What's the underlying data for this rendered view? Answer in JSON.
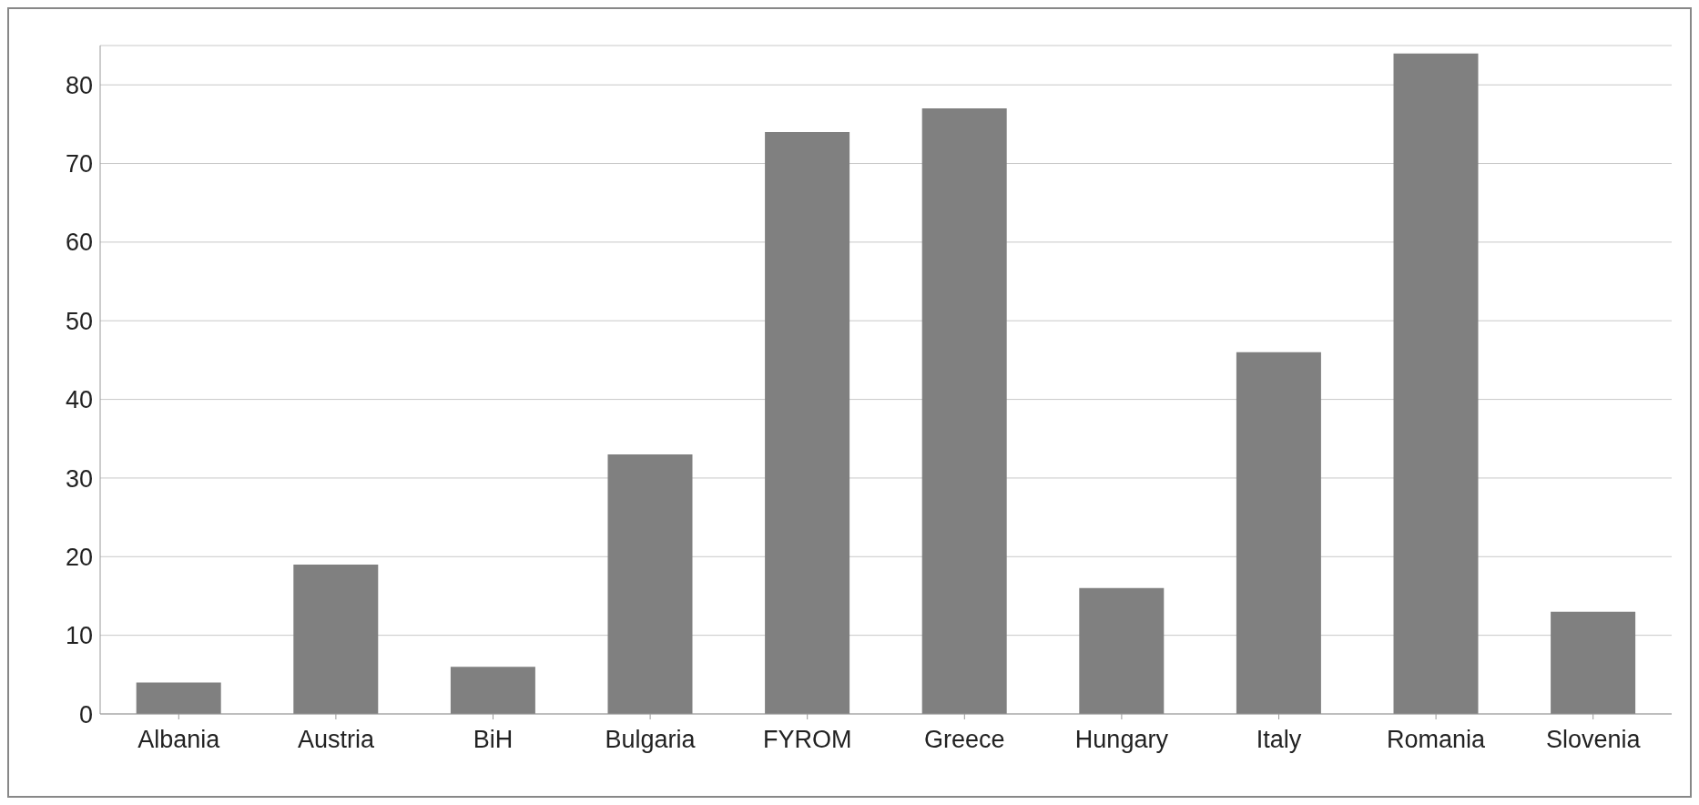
{
  "chart_data": {
    "type": "bar",
    "categories": [
      "Albania",
      "Austria",
      "BiH",
      "Bulgaria",
      "FYROM",
      "Greece",
      "Hungary",
      "Italy",
      "Romania",
      "Slovenia"
    ],
    "values": [
      4,
      19,
      6,
      33,
      74,
      77,
      16,
      46,
      84,
      13
    ],
    "color": "#808080",
    "ylim": [
      0,
      85
    ],
    "yticks": [
      0,
      10,
      20,
      30,
      40,
      50,
      60,
      70,
      80
    ],
    "grid": "y"
  }
}
